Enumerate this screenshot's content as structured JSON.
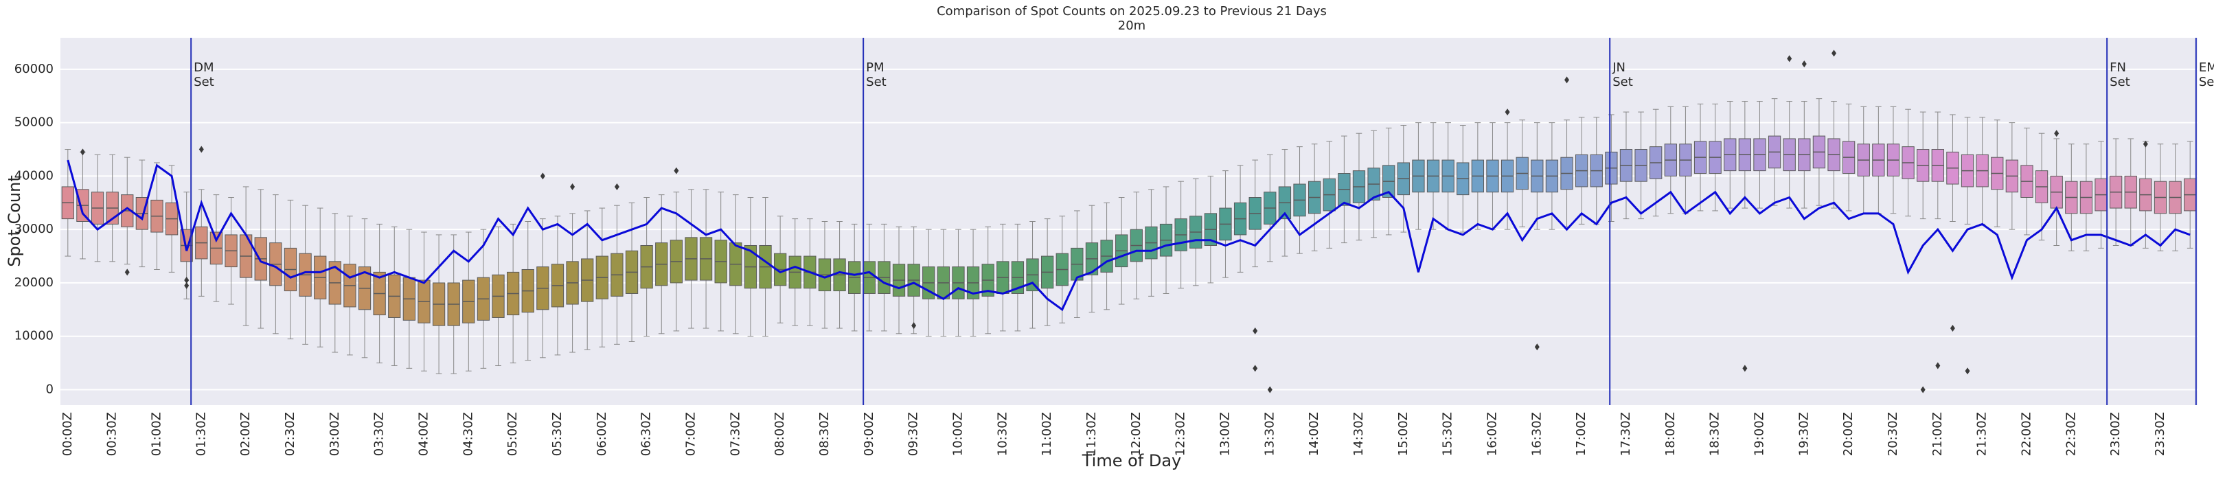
{
  "chart_data": {
    "type": "box",
    "title": "Comparison of Spot Counts on 2025.09.23 to Previous 21 Days",
    "subtitle": "20m",
    "x_label": "Time of Day",
    "y_label": "Spot Count",
    "categories": [
      "00:00Z",
      null,
      null,
      "00:30Z",
      null,
      null,
      "01:00Z",
      null,
      null,
      "01:30Z",
      null,
      null,
      "02:00Z",
      null,
      null,
      "02:30Z",
      null,
      null,
      "03:00Z",
      null,
      null,
      "03:30Z",
      null,
      null,
      "04:00Z",
      null,
      null,
      "04:30Z",
      null,
      null,
      "05:00Z",
      null,
      null,
      "05:30Z",
      null,
      null,
      "06:00Z",
      null,
      null,
      "06:30Z",
      null,
      null,
      "07:00Z",
      null,
      null,
      "07:30Z",
      null,
      null,
      "08:00Z",
      null,
      null,
      "08:30Z",
      null,
      null,
      "09:00Z",
      null,
      null,
      "09:30Z",
      null,
      null,
      "10:00Z",
      null,
      null,
      "10:30Z",
      null,
      null,
      "11:00Z",
      null,
      null,
      "11:30Z",
      null,
      null,
      "12:00Z",
      null,
      null,
      "12:30Z",
      null,
      null,
      "13:00Z",
      null,
      null,
      "13:30Z",
      null,
      null,
      "14:00Z",
      null,
      null,
      "14:30Z",
      null,
      null,
      "15:00Z",
      null,
      null,
      "15:30Z",
      null,
      null,
      "16:00Z",
      null,
      null,
      "16:30Z",
      null,
      null,
      "17:00Z",
      null,
      null,
      "17:30Z",
      null,
      null,
      "18:00Z",
      null,
      null,
      "18:30Z",
      null,
      null,
      "19:00Z",
      null,
      null,
      "19:30Z",
      null,
      null,
      "20:00Z",
      null,
      null,
      "20:30Z",
      null,
      null,
      "21:00Z",
      null,
      null,
      "21:30Z",
      null,
      null,
      "22:00Z",
      null,
      null,
      "22:30Z",
      null,
      null,
      "23:00Z",
      null,
      null,
      "23:30Z",
      null,
      null
    ],
    "boxes": {
      "palette": [
        "#dc8c96",
        "#c8906a",
        "#a89048",
        "#7f9a4a",
        "#5a9e6a",
        "#4e9e94",
        "#70a0c8",
        "#a898d8",
        "#d890d0",
        "#d890a8"
      ],
      "q1": [
        32000,
        31500,
        31000,
        31000,
        30500,
        30000,
        29500,
        29000,
        24000,
        24500,
        23500,
        23000,
        21000,
        20500,
        19500,
        18500,
        17500,
        17000,
        16000,
        15500,
        15000,
        14000,
        13500,
        13000,
        12500,
        12000,
        12000,
        12500,
        13000,
        13500,
        14000,
        14500,
        15000,
        15500,
        16000,
        16500,
        17000,
        17500,
        18000,
        19000,
        19500,
        20000,
        20500,
        20500,
        20000,
        19500,
        19000,
        19000,
        19500,
        19000,
        19000,
        18500,
        18500,
        18000,
        18000,
        18000,
        17500,
        17500,
        17000,
        17000,
        17000,
        17000,
        17500,
        18000,
        18000,
        18500,
        19000,
        19500,
        20500,
        21500,
        22000,
        23000,
        24000,
        24500,
        25000,
        26000,
        26500,
        27000,
        28000,
        29000,
        30000,
        31000,
        32000,
        32500,
        33000,
        33500,
        34500,
        35000,
        35500,
        36000,
        36500,
        37000,
        37000,
        37000,
        36500,
        37000,
        37000,
        37000,
        37500,
        37000,
        37000,
        37500,
        38000,
        38000,
        38500,
        39000,
        39000,
        39500,
        40000,
        40000,
        40500,
        40500,
        41000,
        41000,
        41000,
        41500,
        41000,
        41000,
        41500,
        41000,
        40500,
        40000,
        40000,
        40000,
        39500,
        39000,
        39000,
        38500,
        38000,
        38000,
        37500,
        37000,
        36000,
        35000,
        34000,
        33000,
        33000,
        33500,
        34000,
        34000,
        33500,
        33000,
        33000,
        33500
      ],
      "median": [
        35000,
        34500,
        34000,
        34000,
        33500,
        33000,
        32500,
        32000,
        27000,
        27500,
        26500,
        26000,
        25000,
        24500,
        23500,
        22500,
        21500,
        21000,
        20000,
        19500,
        19000,
        18000,
        17500,
        17000,
        16500,
        16000,
        16000,
        16500,
        17000,
        17500,
        18000,
        18500,
        19000,
        19500,
        20000,
        20500,
        21000,
        21500,
        22000,
        23000,
        23500,
        24000,
        24500,
        24500,
        24000,
        23500,
        23000,
        23000,
        22500,
        22000,
        22000,
        21500,
        21500,
        21000,
        21000,
        21000,
        20500,
        20500,
        20000,
        20000,
        20000,
        20000,
        20500,
        21000,
        21000,
        21500,
        22000,
        22500,
        23500,
        24500,
        25000,
        26000,
        27000,
        27500,
        28000,
        29000,
        29500,
        30000,
        31000,
        32000,
        33000,
        34000,
        35000,
        35500,
        36000,
        36500,
        37500,
        38000,
        38500,
        39000,
        39500,
        40000,
        40000,
        40000,
        39500,
        40000,
        40000,
        40000,
        40500,
        40000,
        40000,
        40500,
        41000,
        41000,
        41500,
        42000,
        42000,
        42500,
        43000,
        43000,
        43500,
        43500,
        44000,
        44000,
        44000,
        44500,
        44000,
        44000,
        44500,
        44000,
        43500,
        43000,
        43000,
        43000,
        42500,
        42000,
        42000,
        41500,
        41000,
        41000,
        40500,
        40000,
        39000,
        38000,
        37000,
        36000,
        36000,
        36500,
        37000,
        37000,
        36500,
        36000,
        36000,
        36500
      ],
      "q3": [
        38000,
        37500,
        37000,
        37000,
        36500,
        36000,
        35500,
        35000,
        30000,
        30500,
        29500,
        29000,
        29000,
        28500,
        27500,
        26500,
        25500,
        25000,
        24000,
        23500,
        23000,
        22000,
        21500,
        21000,
        20500,
        20000,
        20000,
        20500,
        21000,
        21500,
        22000,
        22500,
        23000,
        23500,
        24000,
        24500,
        25000,
        25500,
        26000,
        27000,
        27500,
        28000,
        28500,
        28500,
        28000,
        27500,
        27000,
        27000,
        25500,
        25000,
        25000,
        24500,
        24500,
        24000,
        24000,
        24000,
        23500,
        23500,
        23000,
        23000,
        23000,
        23000,
        23500,
        24000,
        24000,
        24500,
        25000,
        25500,
        26500,
        27500,
        28000,
        29000,
        30000,
        30500,
        31000,
        32000,
        32500,
        33000,
        34000,
        35000,
        36000,
        37000,
        38000,
        38500,
        39000,
        39500,
        40500,
        41000,
        41500,
        42000,
        42500,
        43000,
        43000,
        43000,
        42500,
        43000,
        43000,
        43000,
        43500,
        43000,
        43000,
        43500,
        44000,
        44000,
        44500,
        45000,
        45000,
        45500,
        46000,
        46000,
        46500,
        46500,
        47000,
        47000,
        47000,
        47500,
        47000,
        47000,
        47500,
        47000,
        46500,
        46000,
        46000,
        46000,
        45500,
        45000,
        45000,
        44500,
        44000,
        44000,
        43500,
        43000,
        42000,
        41000,
        40000,
        39000,
        39000,
        39500,
        40000,
        40000,
        39500,
        39000,
        39000,
        39500
      ],
      "whislo": [
        25000,
        24500,
        24000,
        24000,
        23500,
        23000,
        22500,
        22000,
        17000,
        17500,
        16500,
        16000,
        12000,
        11500,
        10500,
        9500,
        8500,
        8000,
        7000,
        6500,
        6000,
        5000,
        4500,
        4000,
        3500,
        3000,
        3000,
        3500,
        4000,
        4500,
        5000,
        5500,
        6000,
        6500,
        7000,
        7500,
        8000,
        8500,
        9000,
        10000,
        10500,
        11000,
        11500,
        11500,
        11000,
        10500,
        10000,
        10000,
        12500,
        12000,
        12000,
        11500,
        11500,
        11000,
        11000,
        11000,
        10500,
        10500,
        10000,
        10000,
        10000,
        10000,
        10500,
        11000,
        11000,
        11500,
        12000,
        12500,
        13500,
        14500,
        15000,
        16000,
        17000,
        17500,
        18000,
        19000,
        19500,
        20000,
        21000,
        22000,
        23000,
        24000,
        25000,
        25500,
        26000,
        26500,
        27500,
        28000,
        28500,
        29000,
        29500,
        30000,
        30000,
        30000,
        29500,
        30000,
        30000,
        30000,
        30500,
        30000,
        30000,
        30500,
        31000,
        31000,
        31500,
        32000,
        32000,
        32500,
        33000,
        33000,
        33500,
        33500,
        34000,
        34000,
        34000,
        34500,
        34000,
        34000,
        34500,
        34000,
        33500,
        33000,
        33000,
        33000,
        32500,
        32000,
        32000,
        31500,
        31000,
        31000,
        30500,
        30000,
        29000,
        28000,
        27000,
        26000,
        26000,
        26500,
        27000,
        27000,
        26500,
        26000,
        26000,
        26500
      ],
      "whishi": [
        45000,
        44500,
        44000,
        44000,
        43500,
        43000,
        42500,
        42000,
        37000,
        37500,
        36500,
        36000,
        38000,
        37500,
        36500,
        35500,
        34500,
        34000,
        33000,
        32500,
        32000,
        31000,
        30500,
        30000,
        29500,
        29000,
        29000,
        29500,
        30000,
        30500,
        31000,
        31500,
        32000,
        32500,
        33000,
        33500,
        34000,
        34500,
        35000,
        36000,
        36500,
        37000,
        37500,
        37500,
        37000,
        36500,
        36000,
        36000,
        32500,
        32000,
        32000,
        31500,
        31500,
        31000,
        31000,
        31000,
        30500,
        30500,
        30000,
        30000,
        30000,
        30000,
        30500,
        31000,
        31000,
        31500,
        32000,
        32500,
        33500,
        34500,
        35000,
        36000,
        37000,
        37500,
        38000,
        39000,
        39500,
        40000,
        41000,
        42000,
        43000,
        44000,
        45000,
        45500,
        46000,
        46500,
        47500,
        48000,
        48500,
        49000,
        49500,
        50000,
        50000,
        50000,
        49500,
        50000,
        50000,
        50000,
        50500,
        50000,
        50000,
        50500,
        51000,
        51000,
        51500,
        52000,
        52000,
        52500,
        53000,
        53000,
        53500,
        53500,
        54000,
        54000,
        54000,
        54500,
        54000,
        54000,
        54500,
        54000,
        53500,
        53000,
        53000,
        53000,
        52500,
        52000,
        52000,
        51500,
        51000,
        51000,
        50500,
        50000,
        49000,
        48000,
        47000,
        46000,
        46000,
        46500,
        47000,
        47000,
        46500,
        46000,
        46000,
        46500
      ]
    },
    "outliers": {
      "color": "#3a3a3a",
      "x": [
        1,
        4,
        8,
        8,
        9,
        32,
        34,
        37,
        41,
        57,
        80,
        80,
        81,
        97,
        99,
        101,
        113,
        116,
        117,
        119,
        125,
        126,
        127,
        128,
        134,
        140
      ],
      "values": [
        44500,
        22000,
        19500,
        20500,
        45000,
        40000,
        38000,
        38000,
        41000,
        12000,
        11000,
        4000,
        0,
        52000,
        8000,
        58000,
        4000,
        62000,
        61000,
        63000,
        0,
        4500,
        11500,
        3500,
        48000,
        46000
      ]
    },
    "line": {
      "color": "#0a0ad8",
      "values": [
        43000,
        33000,
        30000,
        32000,
        34000,
        32000,
        42000,
        40000,
        26000,
        35000,
        28000,
        33000,
        29000,
        24000,
        23000,
        21000,
        22000,
        22000,
        23000,
        21000,
        22000,
        21000,
        22000,
        21000,
        20000,
        23000,
        26000,
        24000,
        27000,
        32000,
        29000,
        34000,
        30000,
        31000,
        29000,
        31000,
        28000,
        29000,
        30000,
        31000,
        34000,
        33000,
        31000,
        29000,
        30000,
        27000,
        26000,
        24000,
        22000,
        23000,
        22000,
        21000,
        22000,
        21500,
        22000,
        20000,
        19000,
        20000,
        18500,
        17000,
        19000,
        18000,
        18500,
        18000,
        19000,
        20000,
        17000,
        15000,
        21000,
        22000,
        24000,
        25000,
        26000,
        26000,
        27000,
        27500,
        28000,
        28000,
        27000,
        28000,
        27000,
        30000,
        33000,
        29000,
        31000,
        33000,
        35000,
        34000,
        36000,
        37000,
        34000,
        22000,
        32000,
        30000,
        29000,
        31000,
        30000,
        33000,
        28000,
        32000,
        33000,
        30000,
        33000,
        31000,
        35000,
        36000,
        33000,
        35000,
        37000,
        33000,
        35000,
        37000,
        33000,
        36000,
        33000,
        35000,
        36000,
        32000,
        34000,
        35000,
        32000,
        33000,
        33000,
        31000,
        22000,
        27000,
        30000,
        26000,
        30000,
        31000,
        29000,
        21000,
        28000,
        30000,
        34000,
        28000,
        29000,
        29000,
        28000,
        27000,
        29000,
        27000,
        30000,
        29000
      ]
    },
    "annotations": [
      {
        "x": 8.3,
        "lines": [
          "DM",
          "Set"
        ]
      },
      {
        "x": 53.6,
        "lines": [
          "PM",
          "Set"
        ]
      },
      {
        "x": 103.9,
        "lines": [
          "JN",
          "Set"
        ]
      },
      {
        "x": 137.4,
        "lines": [
          "FN",
          "Set"
        ]
      },
      {
        "x": 143.4,
        "lines": [
          "EM",
          "Set"
        ]
      }
    ],
    "annotation_color": "#2430b8",
    "ylim": [
      -2900,
      65900
    ],
    "yticks": [
      0,
      10000,
      20000,
      30000,
      40000,
      50000,
      60000
    ],
    "grid": true,
    "background": "#eaeaf2"
  }
}
